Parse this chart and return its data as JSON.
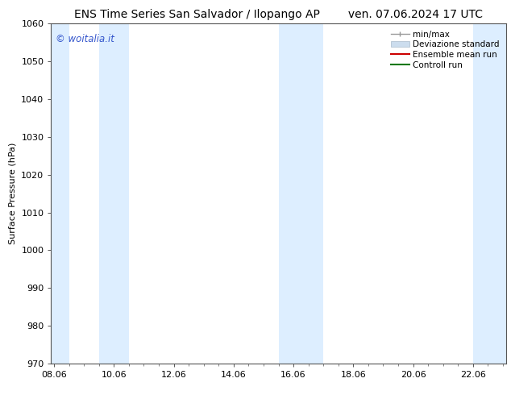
{
  "title": "ENS Time Series San Salvador / Ilopango AP        ven. 07.06.2024 17 UTC",
  "ylabel": "Surface Pressure (hPa)",
  "ylim": [
    970,
    1060
  ],
  "yticks": [
    970,
    980,
    990,
    1000,
    1010,
    1020,
    1030,
    1040,
    1050,
    1060
  ],
  "xtick_labels": [
    "08.06",
    "10.06",
    "12.06",
    "14.06",
    "16.06",
    "18.06",
    "20.06",
    "22.06"
  ],
  "xtick_positions": [
    0,
    2,
    4,
    6,
    8,
    10,
    12,
    14
  ],
  "xlim": [
    -0.1,
    15.1
  ],
  "watermark": "© woitalia.it",
  "watermark_color": "#3355cc",
  "bg_color": "#ffffff",
  "plot_bg_color": "#ffffff",
  "shaded_color": "#ddeeff",
  "shaded_bands": [
    {
      "x_start": -0.1,
      "x_end": 0.5
    },
    {
      "x_start": 1.5,
      "x_end": 2.5
    },
    {
      "x_start": 7.5,
      "x_end": 9.0
    },
    {
      "x_start": 14.0,
      "x_end": 15.1
    }
  ],
  "title_fontsize": 10,
  "axis_fontsize": 8,
  "tick_fontsize": 8,
  "legend_fontsize": 7.5,
  "spine_color": "#555555",
  "grid_color": "#dddddd"
}
